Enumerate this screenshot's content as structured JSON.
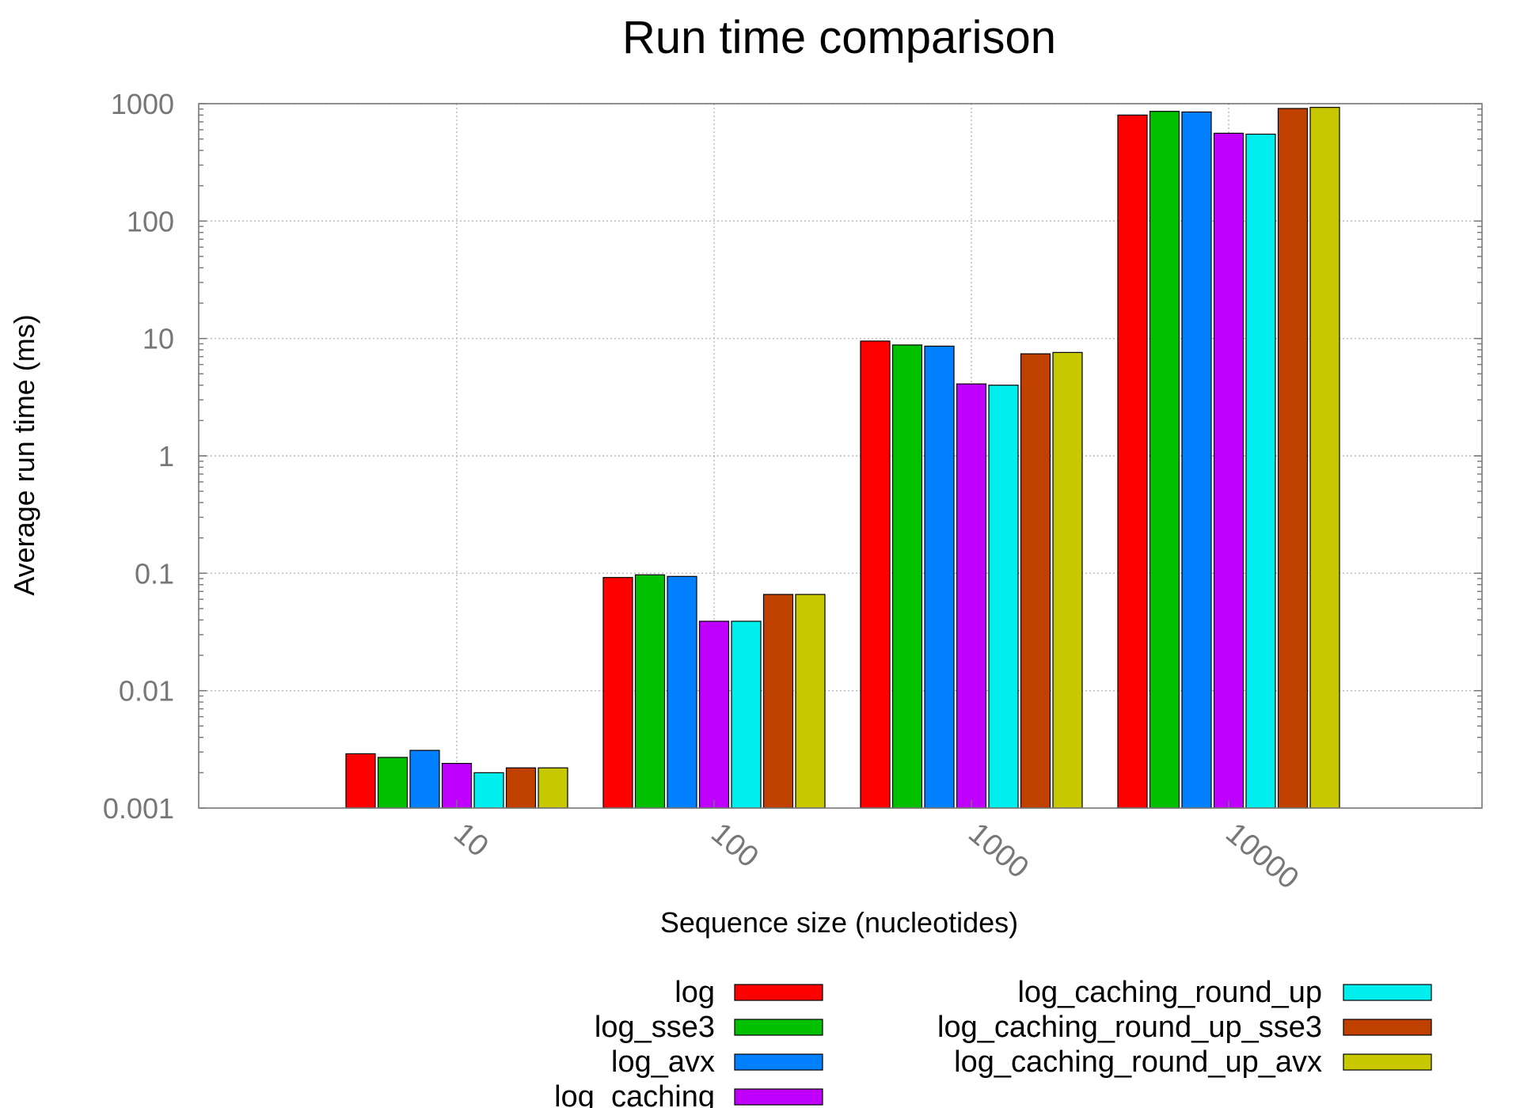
{
  "chart_data": {
    "type": "bar",
    "title": "Run time comparison",
    "xlabel": "Sequence size (nucleotides)",
    "ylabel": "Average run time (ms)",
    "yscale": "log",
    "ylim": [
      0.001,
      1000
    ],
    "ytick_labels": [
      "0.001",
      "0.01",
      "0.1",
      "1",
      "10",
      "100",
      "1000"
    ],
    "categories": [
      "10",
      "100",
      "1000",
      "10000"
    ],
    "grid": true,
    "legend_position": "bottom",
    "series": [
      {
        "name": "log",
        "color": "#ff0000",
        "values": [
          0.0029,
          0.092,
          9.5,
          800
        ]
      },
      {
        "name": "log_sse3",
        "color": "#00c000",
        "values": [
          0.0027,
          0.097,
          8.8,
          860
        ]
      },
      {
        "name": "log_avx",
        "color": "#0080ff",
        "values": [
          0.0031,
          0.094,
          8.6,
          850
        ]
      },
      {
        "name": "log_caching",
        "color": "#c000ff",
        "values": [
          0.0024,
          0.039,
          4.1,
          560
        ]
      },
      {
        "name": "log_caching_round_up",
        "color": "#00eeee",
        "values": [
          0.002,
          0.039,
          4.0,
          550
        ]
      },
      {
        "name": "log_caching_round_up_sse3",
        "color": "#c04000",
        "values": [
          0.0022,
          0.066,
          7.4,
          910
        ]
      },
      {
        "name": "log_caching_round_up_avx",
        "color": "#c8c800",
        "values": [
          0.0022,
          0.066,
          7.6,
          930
        ]
      }
    ]
  }
}
